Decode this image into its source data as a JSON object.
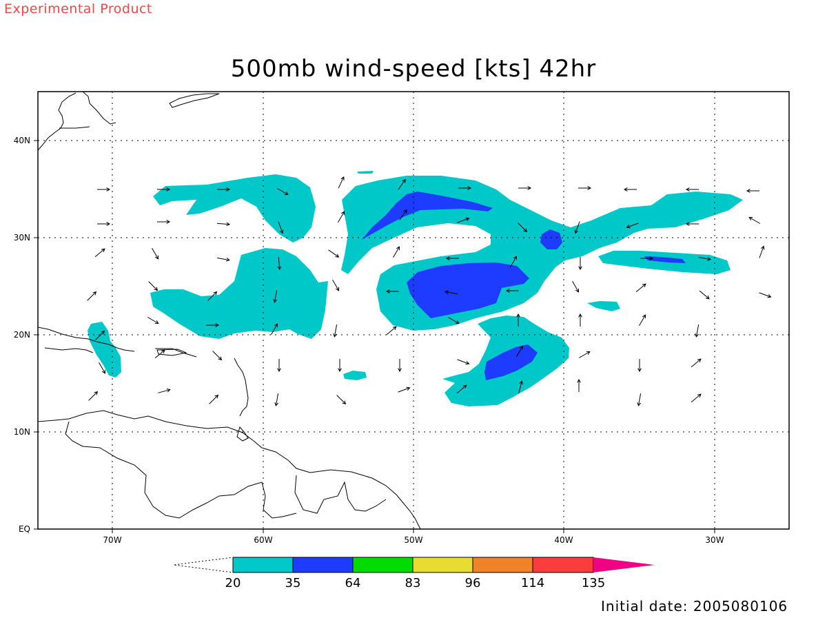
{
  "header": {
    "stamp": "Experimental Product",
    "title": "500mb wind-speed [kts] 42hr"
  },
  "map": {
    "projection": "lat-lon",
    "lon_range_deg": [
      -75,
      -25
    ],
    "lat_range_deg": [
      0,
      45
    ],
    "lon_ticks": [
      "70W",
      "60W",
      "50W",
      "40W",
      "30W"
    ],
    "lat_ticks": [
      "EQ",
      "10N",
      "20N",
      "30N",
      "40N"
    ],
    "gridlines": "dotted",
    "shaded_regions": [
      {
        "level": "20-35 kts",
        "color": "#00c8c8",
        "areas": [
          "bands from 24N to 36N between 75W and 27W",
          "patch near Hispaniola 16N-21N",
          "patch 13N-21N between 48W and 38W"
        ]
      },
      {
        "level": "35-64 kts",
        "color": "#1e3cff",
        "areas": [
          "streak 30N-34N between 53W and 45W",
          "core 22N-27N between 50W and 43W",
          "spot near 29N 41W",
          "strip near 28N 34W",
          "core 15N-19N between 44W and 41W"
        ]
      }
    ],
    "wind_vectors": "arrows showing 500mb wind direction on a regular grid"
  },
  "colorbar": {
    "labels": [
      "20",
      "35",
      "64",
      "83",
      "96",
      "114",
      "135"
    ],
    "colors": [
      "#00c8c8",
      "#1e3cff",
      "#00dc00",
      "#e6dc32",
      "#f08228",
      "#fa3c3c",
      "#f00082"
    ],
    "under_color": "#ffffff"
  },
  "footer": {
    "initial_date": "Initial date: 2005080106"
  }
}
